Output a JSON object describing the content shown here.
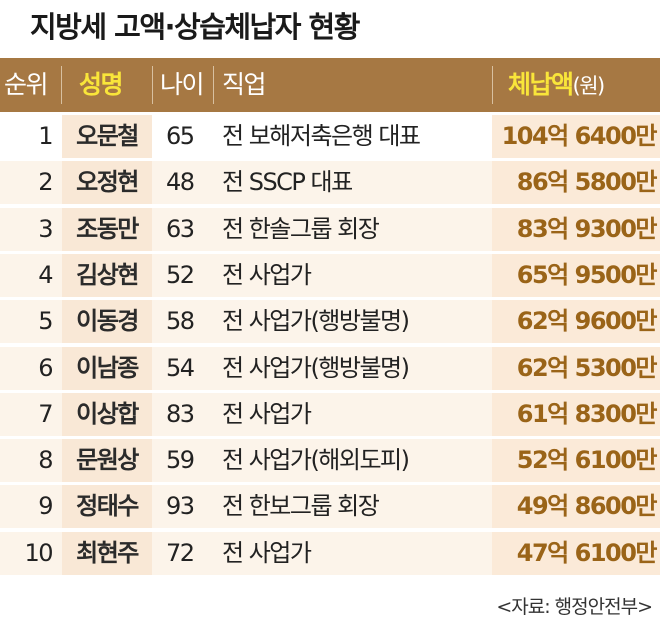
{
  "title": "지방세 고액·상습체납자 현황",
  "colors": {
    "header_bg": "#a67843",
    "header_highlight_text": "#f9e53a",
    "amount_text": "#9a6418",
    "row_bg": "#fcf4ea",
    "column_highlight": "#f9e8d6"
  },
  "chart_data": {
    "type": "table",
    "title": "지방세 고액·상습체납자 현황",
    "columns": [
      "순위",
      "성명",
      "나이",
      "직업",
      "체납액",
      "(원)"
    ],
    "rows": [
      {
        "rank": "1",
        "name": "오문철",
        "age": "65",
        "job": "전 보해저축은행 대표",
        "amount": "104억 6400만"
      },
      {
        "rank": "2",
        "name": "오정현",
        "age": "48",
        "job": "전 SSCP 대표",
        "amount": "86억 5800만"
      },
      {
        "rank": "3",
        "name": "조동만",
        "age": "63",
        "job": "전 한솔그룹 회장",
        "amount": "83억 9300만"
      },
      {
        "rank": "4",
        "name": "김상현",
        "age": "52",
        "job": "전 사업가",
        "amount": "65억 9500만"
      },
      {
        "rank": "5",
        "name": "이동경",
        "age": "58",
        "job": "전 사업가(행방불명)",
        "amount": "62억 9600만"
      },
      {
        "rank": "6",
        "name": "이남종",
        "age": "54",
        "job": "전 사업가(행방불명)",
        "amount": "62억 5300만"
      },
      {
        "rank": "7",
        "name": "이상합",
        "age": "83",
        "job": "전 사업가",
        "amount": "61억 8300만"
      },
      {
        "rank": "8",
        "name": "문원상",
        "age": "59",
        "job": "전 사업가(해외도피)",
        "amount": "52억 6100만"
      },
      {
        "rank": "9",
        "name": "정태수",
        "age": "93",
        "job": "전 한보그룹 회장",
        "amount": "49억 8600만"
      },
      {
        "rank": "10",
        "name": "최현주",
        "age": "72",
        "job": "전 사업가",
        "amount": "47억 6100만"
      }
    ],
    "source": "<자료: 행정안전부>"
  }
}
